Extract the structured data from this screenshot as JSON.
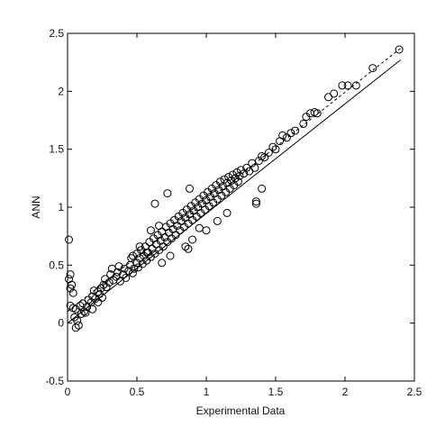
{
  "chart_data": {
    "type": "scatter",
    "title": "",
    "xlabel": "Experimental Data",
    "ylabel": "ANN",
    "xlim": [
      0,
      2.5
    ],
    "ylim": [
      -0.5,
      2.5
    ],
    "xticks": [
      "0",
      "0.5",
      "1",
      "1.5",
      "2",
      "2.5"
    ],
    "yticks": [
      "-0.5",
      "0",
      "0.5",
      "1",
      "1.5",
      "2",
      "2.5"
    ],
    "grid": false,
    "marker": "open-circle",
    "lines": [
      {
        "style": "solid",
        "x": [
          0,
          2.4
        ],
        "y": [
          0,
          2.27
        ]
      },
      {
        "style": "dashed",
        "x": [
          0,
          2.4
        ],
        "y": [
          0.1,
          2.37
        ]
      }
    ],
    "series": [
      {
        "points": [
          [
            0.01,
            0.72
          ],
          [
            0.02,
            0.42
          ],
          [
            0.01,
            0.38
          ],
          [
            0.03,
            0.33
          ],
          [
            0.02,
            0.3
          ],
          [
            0.04,
            0.26
          ],
          [
            0.02,
            0.15
          ],
          [
            0.04,
            0.13
          ],
          [
            0.06,
            0.12
          ],
          [
            0.05,
            0.05
          ],
          [
            0.07,
            0.02
          ],
          [
            0.08,
            -0.02
          ],
          [
            0.06,
            -0.04
          ],
          [
            0.1,
            0.08
          ],
          [
            0.12,
            0.1
          ],
          [
            0.09,
            0.15
          ],
          [
            0.11,
            0.17
          ],
          [
            0.14,
            0.14
          ],
          [
            0.15,
            0.2
          ],
          [
            0.13,
            0.09
          ],
          [
            0.17,
            0.18
          ],
          [
            0.18,
            0.23
          ],
          [
            0.2,
            0.21
          ],
          [
            0.19,
            0.28
          ],
          [
            0.22,
            0.27
          ],
          [
            0.24,
            0.3
          ],
          [
            0.23,
            0.25
          ],
          [
            0.26,
            0.33
          ],
          [
            0.27,
            0.38
          ],
          [
            0.28,
            0.31
          ],
          [
            0.3,
            0.35
          ],
          [
            0.31,
            0.42
          ],
          [
            0.32,
            0.47
          ],
          [
            0.33,
            0.37
          ],
          [
            0.35,
            0.4
          ],
          [
            0.36,
            0.44
          ],
          [
            0.37,
            0.49
          ],
          [
            0.38,
            0.36
          ],
          [
            0.4,
            0.42
          ],
          [
            0.41,
            0.47
          ],
          [
            0.42,
            0.39
          ],
          [
            0.44,
            0.45
          ],
          [
            0.45,
            0.5
          ],
          [
            0.46,
            0.56
          ],
          [
            0.47,
            0.43
          ],
          [
            0.48,
            0.47
          ],
          [
            0.5,
            0.52
          ],
          [
            0.5,
            0.6
          ],
          [
            0.51,
            0.48
          ],
          [
            0.52,
            0.56
          ],
          [
            0.53,
            0.63
          ],
          [
            0.54,
            0.51
          ],
          [
            0.55,
            0.58
          ],
          [
            0.56,
            0.66
          ],
          [
            0.57,
            0.54
          ],
          [
            0.58,
            0.61
          ],
          [
            0.59,
            0.7
          ],
          [
            0.6,
            0.57
          ],
          [
            0.61,
            0.64
          ],
          [
            0.62,
            0.73
          ],
          [
            0.63,
            0.6
          ],
          [
            0.64,
            0.68
          ],
          [
            0.65,
            0.76
          ],
          [
            0.66,
            0.63
          ],
          [
            0.67,
            0.71
          ],
          [
            0.68,
            0.79
          ],
          [
            0.69,
            0.66
          ],
          [
            0.7,
            0.74
          ],
          [
            0.71,
            0.83
          ],
          [
            0.72,
            0.7
          ],
          [
            0.73,
            0.78
          ],
          [
            0.74,
            0.86
          ],
          [
            0.75,
            0.73
          ],
          [
            0.76,
            0.81
          ],
          [
            0.77,
            0.89
          ],
          [
            0.78,
            0.76
          ],
          [
            0.79,
            0.84
          ],
          [
            0.8,
            0.92
          ],
          [
            0.81,
            0.8
          ],
          [
            0.82,
            0.88
          ],
          [
            0.83,
            0.95
          ],
          [
            0.84,
            0.83
          ],
          [
            0.85,
            0.91
          ],
          [
            0.86,
            0.98
          ],
          [
            0.87,
            0.86
          ],
          [
            0.88,
            0.94
          ],
          [
            0.89,
            1.01
          ],
          [
            0.9,
            0.89
          ],
          [
            0.91,
            0.97
          ],
          [
            0.92,
            1.04
          ],
          [
            0.93,
            0.92
          ],
          [
            0.94,
            1.0
          ],
          [
            0.95,
            1.07
          ],
          [
            0.96,
            0.95
          ],
          [
            0.97,
            1.03
          ],
          [
            0.98,
            1.1
          ],
          [
            0.99,
            0.98
          ],
          [
            1.0,
            1.06
          ],
          [
            1.01,
            1.13
          ],
          [
            1.02,
            1.01
          ],
          [
            1.03,
            1.09
          ],
          [
            1.04,
            1.16
          ],
          [
            1.05,
            1.04
          ],
          [
            1.06,
            1.12
          ],
          [
            1.07,
            1.19
          ],
          [
            1.08,
            1.07
          ],
          [
            1.09,
            1.15
          ],
          [
            1.1,
            1.22
          ],
          [
            1.11,
            1.1
          ],
          [
            1.12,
            1.18
          ],
          [
            1.13,
            1.24
          ],
          [
            1.14,
            1.13
          ],
          [
            1.15,
            1.21
          ],
          [
            1.16,
            1.26
          ],
          [
            1.17,
            1.16
          ],
          [
            1.18,
            1.23
          ],
          [
            1.19,
            1.28
          ],
          [
            1.2,
            1.19
          ],
          [
            1.21,
            1.25
          ],
          [
            1.22,
            1.3
          ],
          [
            1.23,
            1.22
          ],
          [
            1.24,
            1.27
          ],
          [
            1.25,
            1.32
          ],
          [
            1.27,
            1.29
          ],
          [
            1.29,
            1.34
          ],
          [
            1.31,
            1.31
          ],
          [
            0.63,
            1.03
          ],
          [
            0.72,
            1.12
          ],
          [
            0.88,
            1.16
          ],
          [
            0.85,
            0.66
          ],
          [
            0.87,
            0.64
          ],
          [
            0.9,
            0.72
          ],
          [
            0.68,
            0.52
          ],
          [
            0.74,
            0.58
          ],
          [
            0.57,
            0.61
          ],
          [
            0.66,
            0.84
          ],
          [
            1.0,
            0.8
          ],
          [
            1.08,
            0.88
          ],
          [
            1.15,
            0.95
          ],
          [
            0.95,
            0.82
          ],
          [
            1.36,
            1.03
          ],
          [
            1.36,
            1.05
          ],
          [
            1.4,
            1.16
          ],
          [
            0.47,
            0.58
          ],
          [
            0.52,
            0.66
          ],
          [
            0.6,
            0.8
          ],
          [
            0.25,
            0.22
          ],
          [
            0.18,
            0.12
          ],
          [
            0.22,
            0.18
          ],
          [
            1.33,
            1.38
          ],
          [
            1.35,
            1.34
          ],
          [
            1.38,
            1.4
          ],
          [
            1.4,
            1.44
          ],
          [
            1.42,
            1.43
          ],
          [
            1.45,
            1.47
          ],
          [
            1.48,
            1.52
          ],
          [
            1.5,
            1.5
          ],
          [
            1.53,
            1.57
          ],
          [
            1.55,
            1.62
          ],
          [
            1.58,
            1.6
          ],
          [
            1.61,
            1.64
          ],
          [
            1.64,
            1.66
          ],
          [
            1.7,
            1.72
          ],
          [
            1.72,
            1.78
          ],
          [
            1.75,
            1.81
          ],
          [
            1.78,
            1.82
          ],
          [
            1.8,
            1.81
          ],
          [
            1.88,
            1.95
          ],
          [
            1.92,
            1.98
          ],
          [
            1.98,
            2.05
          ],
          [
            2.02,
            2.05
          ],
          [
            2.08,
            2.05
          ],
          [
            2.2,
            2.2
          ],
          [
            2.39,
            2.36
          ]
        ]
      }
    ]
  }
}
